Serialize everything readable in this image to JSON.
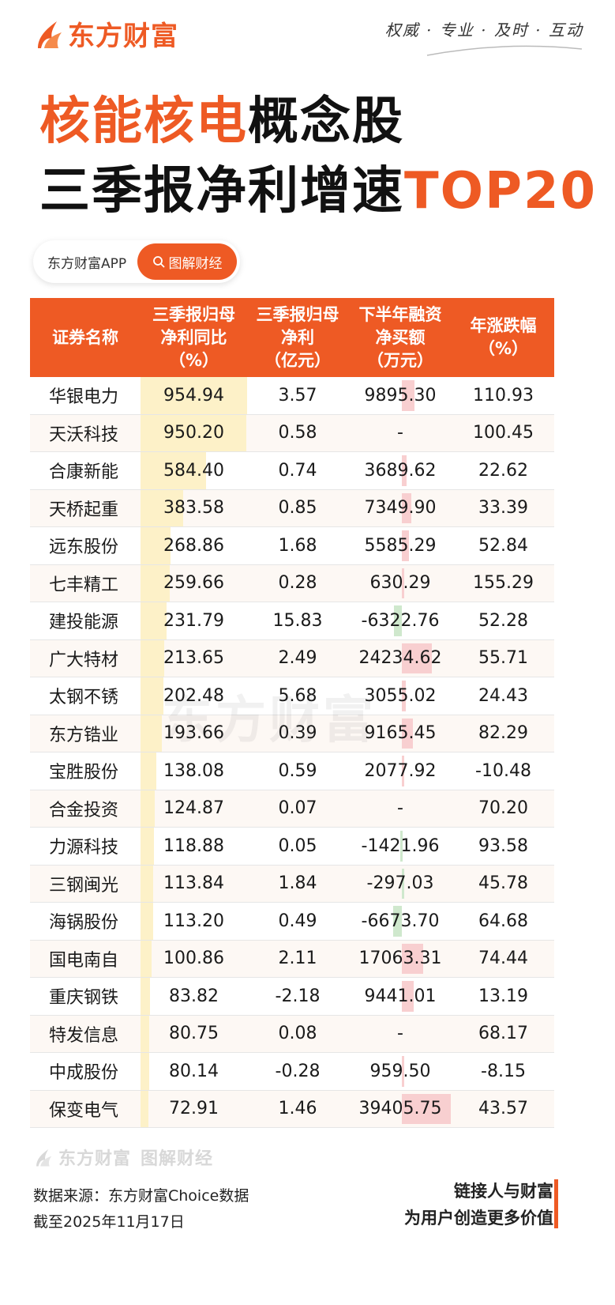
{
  "brand": {
    "name": "东方财富",
    "slogan": "权威 · 专业 · 及时 · 互动",
    "color": "#ee5a24"
  },
  "title": {
    "line1_orange": "核能核电",
    "line1_black": "概念股",
    "line2_black": "三季报净利增速",
    "line2_orange": "TOP20"
  },
  "pill": {
    "left": "东方财富APP",
    "right": "图解财经",
    "icon": "search-icon"
  },
  "table": {
    "headers": [
      [
        "证券名称"
      ],
      [
        "三季报归母",
        "净利同比",
        "（%）"
      ],
      [
        "三季报归母",
        "净利",
        "（亿元）"
      ],
      [
        "下半年融资",
        "净买额",
        "（万元）"
      ],
      [
        "年涨跌幅",
        "（%）"
      ]
    ],
    "rows": [
      {
        "name": "华银电力",
        "growth": "954.94",
        "profit": "3.57",
        "margin": "9895.30",
        "ytd": "110.93",
        "growth_val": 954.94,
        "margin_val": 9895.3
      },
      {
        "name": "天沃科技",
        "growth": "950.20",
        "profit": "0.58",
        "margin": "-",
        "ytd": "100.45",
        "growth_val": 950.2,
        "margin_val": 0
      },
      {
        "name": "合康新能",
        "growth": "584.40",
        "profit": "0.74",
        "margin": "3689.62",
        "ytd": "22.62",
        "growth_val": 584.4,
        "margin_val": 3689.62
      },
      {
        "name": "天桥起重",
        "growth": "383.58",
        "profit": "0.85",
        "margin": "7349.90",
        "ytd": "33.39",
        "growth_val": 383.58,
        "margin_val": 7349.9
      },
      {
        "name": "远东股份",
        "growth": "268.86",
        "profit": "1.68",
        "margin": "5585.29",
        "ytd": "52.84",
        "growth_val": 268.86,
        "margin_val": 5585.29
      },
      {
        "name": "七丰精工",
        "growth": "259.66",
        "profit": "0.28",
        "margin": "630.29",
        "ytd": "155.29",
        "growth_val": 259.66,
        "margin_val": 630.29
      },
      {
        "name": "建投能源",
        "growth": "231.79",
        "profit": "15.83",
        "margin": "-6322.76",
        "ytd": "52.28",
        "growth_val": 231.79,
        "margin_val": -6322.76
      },
      {
        "name": "广大特材",
        "growth": "213.65",
        "profit": "2.49",
        "margin": "24234.62",
        "ytd": "55.71",
        "growth_val": 213.65,
        "margin_val": 24234.62
      },
      {
        "name": "太钢不锈",
        "growth": "202.48",
        "profit": "5.68",
        "margin": "3055.02",
        "ytd": "24.43",
        "growth_val": 202.48,
        "margin_val": 3055.02
      },
      {
        "name": "东方锆业",
        "growth": "193.66",
        "profit": "0.39",
        "margin": "9165.45",
        "ytd": "82.29",
        "growth_val": 193.66,
        "margin_val": 9165.45
      },
      {
        "name": "宝胜股份",
        "growth": "138.08",
        "profit": "0.59",
        "margin": "2077.92",
        "ytd": "-10.48",
        "growth_val": 138.08,
        "margin_val": 2077.92
      },
      {
        "name": "合金投资",
        "growth": "124.87",
        "profit": "0.07",
        "margin": "-",
        "ytd": "70.20",
        "growth_val": 124.87,
        "margin_val": 0
      },
      {
        "name": "力源科技",
        "growth": "118.88",
        "profit": "0.05",
        "margin": "-1421.96",
        "ytd": "93.58",
        "growth_val": 118.88,
        "margin_val": -1421.96
      },
      {
        "name": "三钢闽光",
        "growth": "113.84",
        "profit": "1.84",
        "margin": "-297.03",
        "ytd": "45.78",
        "growth_val": 113.84,
        "margin_val": -297.03
      },
      {
        "name": "海锅股份",
        "growth": "113.20",
        "profit": "0.49",
        "margin": "-6673.70",
        "ytd": "64.68",
        "growth_val": 113.2,
        "margin_val": -6673.7
      },
      {
        "name": "国电南自",
        "growth": "100.86",
        "profit": "2.11",
        "margin": "17063.31",
        "ytd": "74.44",
        "growth_val": 100.86,
        "margin_val": 17063.31
      },
      {
        "name": "重庆钢铁",
        "growth": "83.82",
        "profit": "-2.18",
        "margin": "9441.01",
        "ytd": "13.19",
        "growth_val": 83.82,
        "margin_val": 9441.01
      },
      {
        "name": "特发信息",
        "growth": "80.75",
        "profit": "0.08",
        "margin": "-",
        "ytd": "68.17",
        "growth_val": 80.75,
        "margin_val": 0
      },
      {
        "name": "中成股份",
        "growth": "80.14",
        "profit": "-0.28",
        "margin": "959.50",
        "ytd": "-8.15",
        "growth_val": 80.14,
        "margin_val": 959.5
      },
      {
        "name": "保变电气",
        "growth": "72.91",
        "profit": "1.46",
        "margin": "39405.75",
        "ytd": "43.57",
        "growth_val": 72.91,
        "margin_val": 39405.75
      }
    ],
    "bar_colors": {
      "growth": "#fdf1c8",
      "positive": "#f8cfd0",
      "negative": "#cfe8cd"
    }
  },
  "watermark": "东方财富",
  "footer": {
    "brand": "东方财富",
    "section": "图解财经",
    "source": "数据来源：东方财富Choice数据",
    "date": "截至2025年11月17日",
    "tagline1": "链接人与财富",
    "tagline2": "为用户创造更多价值"
  }
}
